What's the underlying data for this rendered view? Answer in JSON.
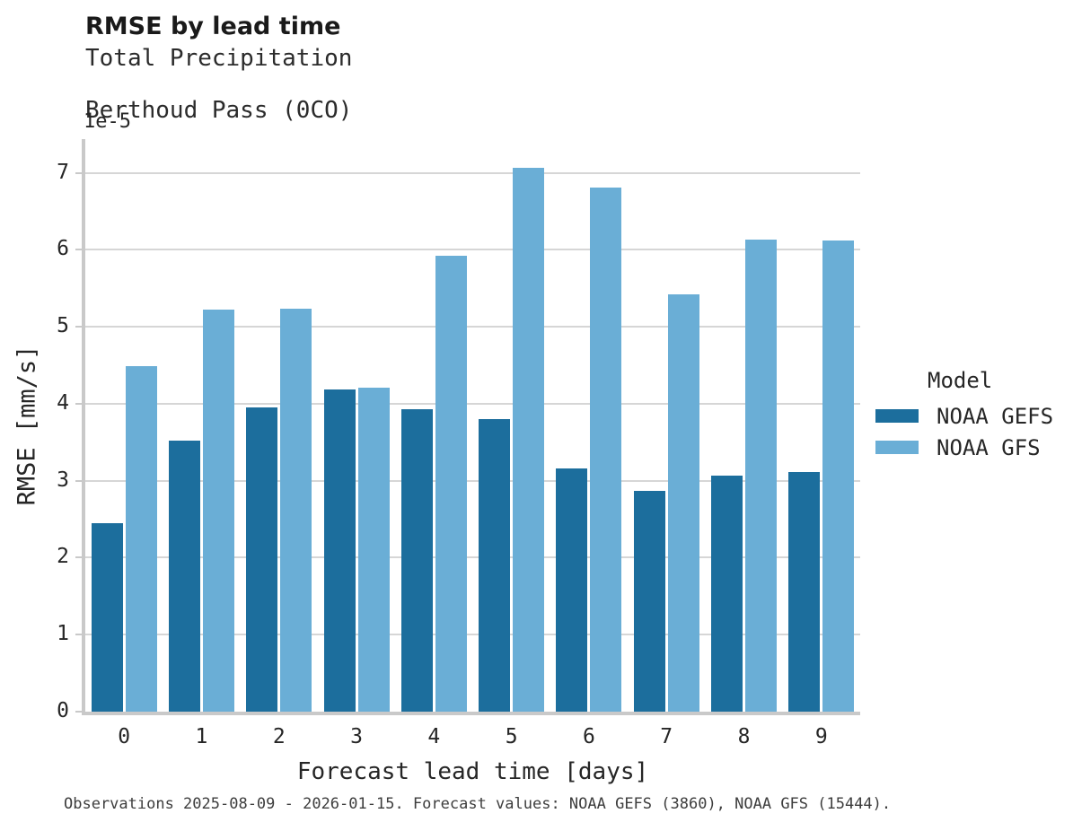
{
  "header": {
    "title": "RMSE by lead time",
    "subtitle1": "Total Precipitation",
    "subtitle2": "Berthoud Pass (0CO)"
  },
  "chart_data": {
    "type": "bar",
    "title": "RMSE by lead time",
    "subtitle": [
      "Total Precipitation",
      "Berthoud Pass (0CO)"
    ],
    "categories": [
      "0",
      "1",
      "2",
      "3",
      "4",
      "5",
      "6",
      "7",
      "8",
      "9"
    ],
    "series": [
      {
        "name": "NOAA GEFS",
        "color": "#1c6e9d",
        "values": [
          2.45,
          3.52,
          3.95,
          4.19,
          3.93,
          3.8,
          3.16,
          2.87,
          3.07,
          3.11
        ]
      },
      {
        "name": "NOAA GFS",
        "color": "#6aaed6",
        "values": [
          4.49,
          5.22,
          5.24,
          4.21,
          5.93,
          7.07,
          6.81,
          5.42,
          6.13,
          6.12
        ]
      }
    ],
    "xlabel": "Forecast lead time [days]",
    "ylabel": "RMSE [mm/s]",
    "y_offset_label": "1e-5",
    "ylim": [
      0,
      7.44
    ],
    "yticks": [
      0,
      1,
      2,
      3,
      4,
      5,
      6,
      7
    ],
    "grid": true,
    "legend_title": "Model",
    "legend_position": "right"
  },
  "legend": {
    "title": "Model"
  },
  "caption": "Observations 2025-08-09 - 2026-01-15. Forecast values: NOAA GEFS (3860), NOAA GFS (15444).",
  "colors": {
    "gefs": "#1c6e9d",
    "gfs": "#6aaed6",
    "grid": "#d6d6d6",
    "spine": "#c9c9c9"
  }
}
